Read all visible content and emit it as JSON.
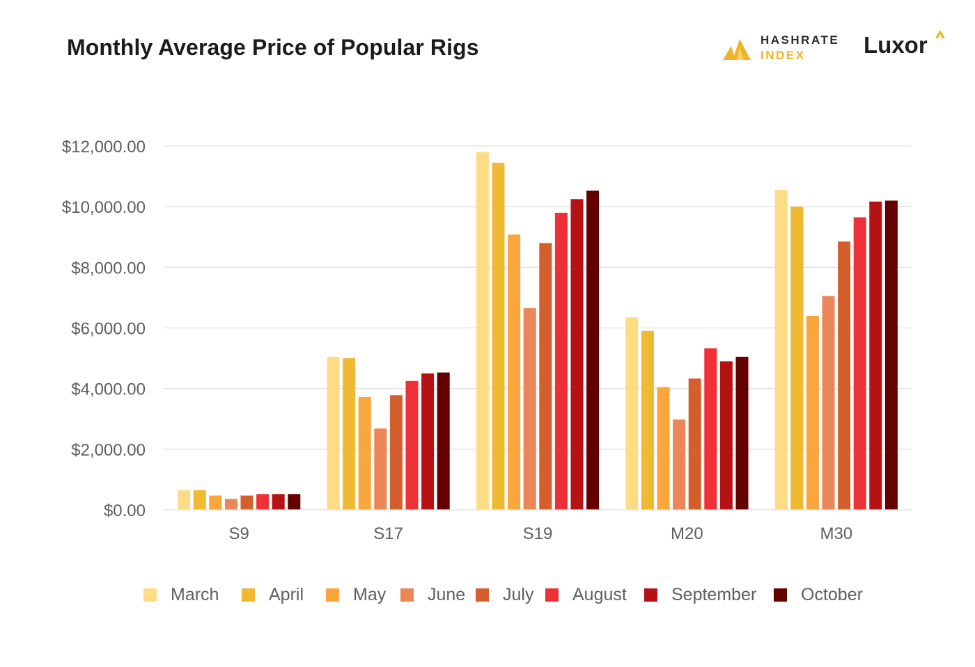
{
  "header": {
    "title": "Monthly Average Price of Popular Rigs",
    "brand_hashrate_line1": "HASHRATE",
    "brand_hashrate_line2": "INDEX",
    "brand_luxor": "Luxor"
  },
  "colors": {
    "March": "#fddc85",
    "April": "#f0b933",
    "May": "#fba53d",
    "June": "#eb8658",
    "July": "#d55e2d",
    "August": "#ee3136",
    "September": "#b61214",
    "October": "#650000",
    "grid": "#e2e2e2",
    "tick_text": "#5f5f5f",
    "brand_yellow": "#f0b429"
  },
  "chart_data": {
    "type": "bar",
    "title": "Monthly Average Price of Popular Rigs",
    "xlabel": "",
    "ylabel": "",
    "ylim": [
      0,
      12000
    ],
    "yticks": [
      0,
      2000,
      4000,
      6000,
      8000,
      10000,
      12000
    ],
    "ytick_labels": [
      "$0.00",
      "$2,000.00",
      "$4,000.00",
      "$6,000.00",
      "$8,000.00",
      "$10,000.00",
      "$12,000.00"
    ],
    "grid": true,
    "legend_position": "bottom",
    "categories": [
      "S9",
      "S17",
      "S19",
      "M20",
      "M30"
    ],
    "series": [
      {
        "name": "March",
        "values": [
          650,
          5050,
          11800,
          6350,
          10550
        ]
      },
      {
        "name": "April",
        "values": [
          650,
          5000,
          11450,
          5900,
          10000
        ]
      },
      {
        "name": "May",
        "values": [
          470,
          3720,
          9080,
          4050,
          6400
        ]
      },
      {
        "name": "June",
        "values": [
          360,
          2680,
          6650,
          2980,
          7050
        ]
      },
      {
        "name": "July",
        "values": [
          470,
          3780,
          8800,
          4330,
          8850
        ]
      },
      {
        "name": "August",
        "values": [
          520,
          4250,
          9800,
          5330,
          9650
        ]
      },
      {
        "name": "September",
        "values": [
          520,
          4500,
          10250,
          4900,
          10170
        ]
      },
      {
        "name": "October",
        "values": [
          520,
          4530,
          10530,
          5050,
          10200
        ]
      }
    ]
  }
}
